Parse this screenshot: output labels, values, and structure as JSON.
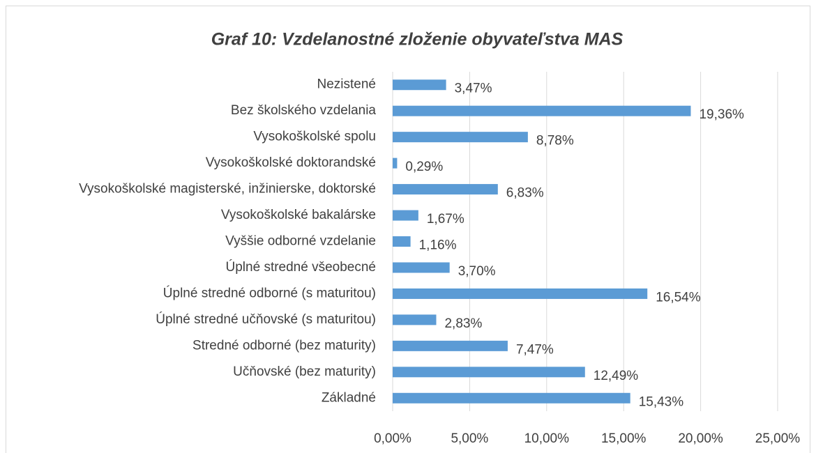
{
  "chart_data": {
    "type": "barh",
    "title": "Graf 10: Vzdelanostné zloženie obyvateľstva MAS",
    "categories": [
      "Nezistené",
      "Bez školského vzdelania",
      "Vysokoškolské spolu",
      "Vysokoškolské doktorandské",
      "Vysokoškolské magisterské, inžinierske, doktorské",
      "Vysokoškolské bakalárske",
      "Vyššie odborné vzdelanie",
      "Úplné stredné všeobecné",
      "Úplné stredné odborné (s maturitou)",
      "Úplné stredné učňovské (s maturitou)",
      "Stredné odborné (bez maturity)",
      "Učňovské (bez maturity)",
      "Základné"
    ],
    "values": [
      3.47,
      19.36,
      8.78,
      0.29,
      6.83,
      1.67,
      1.16,
      3.7,
      16.54,
      2.83,
      7.47,
      12.49,
      15.43
    ],
    "value_labels": [
      "3,47%",
      "19,36%",
      "8,78%",
      "0,29%",
      "6,83%",
      "1,67%",
      "1,16%",
      "3,70%",
      "16,54%",
      "2,83%",
      "7,47%",
      "12,49%",
      "15,43%"
    ],
    "color": "#5b9bd5",
    "xlim": [
      0,
      25
    ],
    "xticks": [
      {
        "value": 0,
        "label": "0,00%"
      },
      {
        "value": 5,
        "label": "5,00%"
      },
      {
        "value": 10,
        "label": "10,00%"
      },
      {
        "value": 15,
        "label": "15,00%"
      },
      {
        "value": 20,
        "label": "20,00%"
      },
      {
        "value": 25,
        "label": "25,00%"
      }
    ],
    "grid": true
  }
}
